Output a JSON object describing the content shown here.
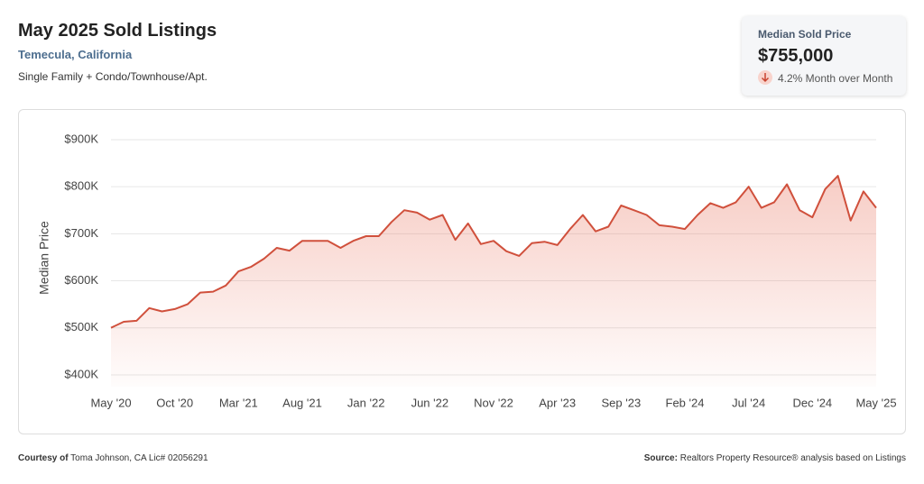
{
  "header": {
    "title": "May 2025 Sold Listings",
    "location": "Temecula, California",
    "property_types": "Single Family + Condo/Townhouse/Apt."
  },
  "card": {
    "label": "Median Sold Price",
    "value": "$755,000",
    "change": "4.2% Month over Month"
  },
  "footer": {
    "courtesy_label": "Courtesy of",
    "courtesy": "Toma Johnson, CA Lic# 02056291",
    "source_label": "Source:",
    "source": "Realtors Property Resource® analysis based on Listings"
  },
  "chart_data": {
    "type": "area",
    "y_label": "Median Price",
    "color": "#d0503c",
    "grid": true,
    "categories": [
      "May '20",
      null,
      null,
      null,
      null,
      "Oct '20",
      null,
      null,
      null,
      null,
      "Mar '21",
      null,
      null,
      null,
      null,
      "Aug '21",
      null,
      null,
      null,
      null,
      "Jan '22",
      null,
      null,
      null,
      null,
      "Jun '22",
      null,
      null,
      null,
      null,
      "Nov '22",
      null,
      null,
      null,
      null,
      "Apr '23",
      null,
      null,
      null,
      null,
      "Sep '23",
      null,
      null,
      null,
      null,
      "Feb '24",
      null,
      null,
      null,
      null,
      "Jul '24",
      null,
      null,
      null,
      null,
      "Dec '24",
      null,
      null,
      null,
      null,
      "May '25"
    ],
    "values": [
      500,
      513,
      515,
      542,
      535,
      540,
      550,
      575,
      577,
      590,
      620,
      630,
      647,
      670,
      664,
      685,
      685,
      685,
      670,
      685,
      695,
      695,
      725,
      750,
      745,
      730,
      740,
      687,
      722,
      678,
      685,
      663,
      653,
      680,
      683,
      676,
      710,
      740,
      705,
      715,
      760,
      750,
      740,
      718,
      715,
      710,
      740,
      765,
      755,
      767,
      800,
      755,
      767,
      805,
      750,
      735,
      795,
      823,
      728,
      790,
      755
    ],
    "ylim": [
      375,
      920
    ],
    "yticks": [
      {
        "value": 400,
        "label": "$400K"
      },
      {
        "value": 500,
        "label": "$500K"
      },
      {
        "value": 600,
        "label": "$600K"
      },
      {
        "value": 700,
        "label": "$700K"
      },
      {
        "value": 800,
        "label": "$800K"
      },
      {
        "value": 900,
        "label": "$900K"
      }
    ]
  }
}
